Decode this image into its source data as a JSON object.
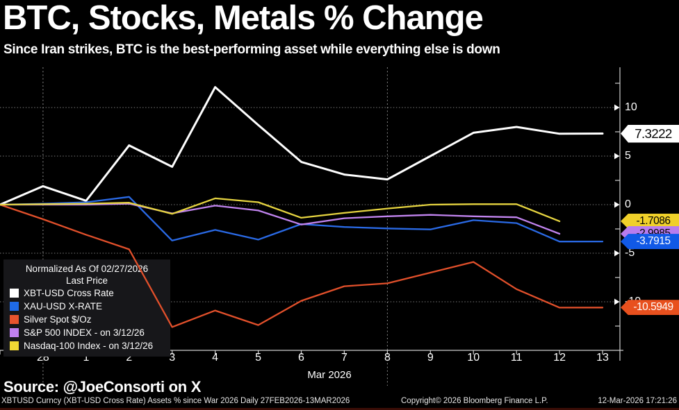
{
  "header": {
    "title": "BTC, Stocks, Metals % Change",
    "subtitle": "Since Iran strikes, BTC is the best-performing asset while everything else is down"
  },
  "legend": {
    "title_line1": "Normalized As Of 02/27/2026",
    "title_line2": "Last Price",
    "items": [
      {
        "label": "XBT-USD Cross Rate",
        "color": "#ffffff"
      },
      {
        "label": "XAU-USD X-RATE",
        "color": "#1f6be8"
      },
      {
        "label": "Silver Spot $/Oz",
        "color": "#e8542e"
      },
      {
        "label": "S&P 500 INDEX -  on 3/12/26",
        "color": "#c080f0"
      },
      {
        "label": "Nasdaq-100 Index -  on 3/12/26",
        "color": "#f0d834"
      }
    ]
  },
  "chart_data": {
    "type": "line",
    "title": "BTC, Stocks, Metals % Change",
    "normalized_as_of": "02/27/2026",
    "x_labels": [
      "28",
      "1",
      "2",
      "3",
      "4",
      "5",
      "6",
      "7",
      "8",
      "9",
      "10",
      "11",
      "12",
      "13"
    ],
    "x_axis_label": "Mar 2026",
    "y_ticks": [
      10,
      5,
      0,
      -5,
      -10
    ],
    "y_minor_ticks": [
      12.5,
      7.5,
      2.5,
      -2.5,
      -7.5,
      -12.5
    ],
    "ylim": [
      -15,
      14.2
    ],
    "grid": "dotted",
    "legend_position": "bottom-left",
    "month_marker_day_indices": [
      1,
      9
    ],
    "series": [
      {
        "name": "XBT-USD Cross Rate",
        "color": "#ffffff",
        "width": 3,
        "values": [
          0,
          1.9,
          0.4,
          6.1,
          3.9,
          12.1,
          8.2,
          4.4,
          3.1,
          2.6,
          5.0,
          7.4,
          8.0,
          7.3,
          7.3222
        ]
      },
      {
        "name": "XAU-USD X-RATE",
        "color": "#2a6ae6",
        "width": 2.3,
        "values": [
          0,
          0.1,
          0.25,
          0.8,
          -3.7,
          -2.6,
          -3.6,
          -2.0,
          -2.3,
          -2.45,
          -2.55,
          -1.6,
          -1.9,
          -3.8,
          -3.7915
        ]
      },
      {
        "name": "Silver Spot $/Oz",
        "color": "#e2502b",
        "width": 2.3,
        "values": [
          0,
          -1.5,
          -3.1,
          -4.6,
          -12.6,
          -10.9,
          -12.4,
          -9.9,
          -8.4,
          -8.1,
          -7.0,
          -5.9,
          -8.7,
          -10.6,
          -10.5949
        ]
      },
      {
        "name": "S&P 500 INDEX",
        "color": "#c184ef",
        "width": 2.3,
        "values": [
          0,
          0.0,
          0.0,
          0.1,
          -0.9,
          -0.1,
          -0.6,
          -2.05,
          -1.4,
          -1.2,
          -1.05,
          -1.2,
          -1.3,
          -2.9985
        ]
      },
      {
        "name": "Nasdaq-100 Index",
        "color": "#e6d440",
        "width": 2.3,
        "values": [
          0,
          0.05,
          0.1,
          0.2,
          -0.95,
          0.65,
          0.25,
          -1.35,
          -0.85,
          -0.4,
          0.0,
          0.05,
          0.05,
          -1.7086
        ]
      }
    ]
  },
  "badges": [
    {
      "label": "7.3222",
      "value": 7.3222,
      "bg": "#ffffff",
      "fg": "#000000",
      "big": true,
      "z": 3
    },
    {
      "label": "-1.7086",
      "value": -1.7086,
      "bg": "#f0d02a",
      "fg": "#000000",
      "big": false,
      "z": 3
    },
    {
      "label": "-2.9985",
      "value": -2.9985,
      "bg": "#b87cee",
      "fg": "#000000",
      "big": false,
      "z": 4
    },
    {
      "label": "-3.7915",
      "value": -3.7915,
      "bg": "#1159e6",
      "fg": "#ffffff",
      "big": false,
      "z": 5
    },
    {
      "label": "-10.5949",
      "value": -10.5949,
      "bg": "#e8501e",
      "fg": "#ffffff",
      "big": false,
      "z": 3
    }
  ],
  "footer": {
    "source": "Source: @JoeConsorti on X",
    "status_left": "XBTUSD Curncy (XBT-USD Cross Rate) Assets % since War 2026 Daily 27FEB2026-13MAR2026",
    "status_center": "Copyright© 2026 Bloomberg Finance L.P.",
    "status_right": "12-Mar-2026 17:21:26"
  }
}
